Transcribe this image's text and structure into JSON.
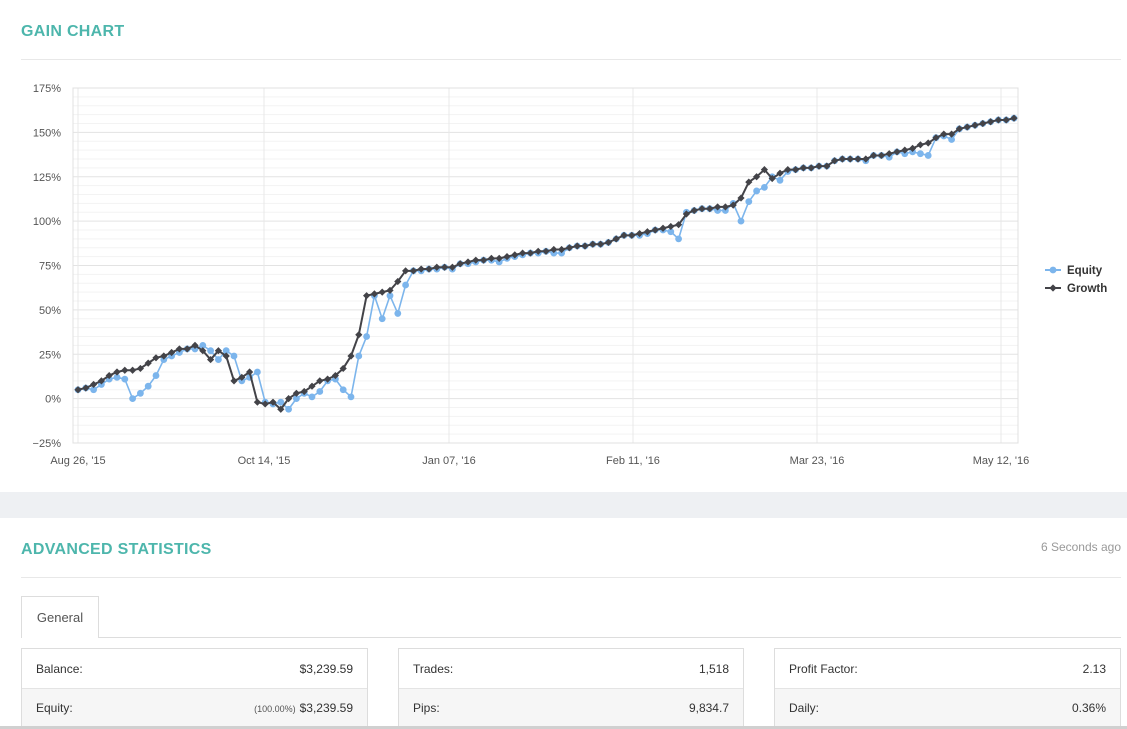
{
  "gain_chart": {
    "title": "GAIN CHART"
  },
  "chart_data": {
    "type": "line",
    "y_ticks": [
      "175%",
      "150%",
      "125%",
      "100%",
      "75%",
      "50%",
      "25%",
      "0%",
      "−25%"
    ],
    "x_ticks": [
      "Aug 26, '15",
      "Oct 14, '15",
      "Jan 07, '16",
      "Feb 11, '16",
      "Mar 23, '16",
      "May 12, '16"
    ],
    "ylim": [
      -25,
      175
    ],
    "grid": true,
    "legend_position": "right",
    "series": [
      {
        "name": "Equity",
        "color": "#7cb5ec",
        "values": [
          5,
          6,
          5,
          8,
          11,
          12,
          11,
          0,
          3,
          7,
          13,
          22,
          24,
          26,
          28,
          28,
          30,
          27,
          22,
          27,
          24,
          10,
          12,
          15,
          -2,
          -3,
          -2,
          -6,
          0,
          3,
          1,
          4,
          10,
          11,
          5,
          1,
          24,
          35,
          58,
          45,
          58,
          48,
          64,
          72,
          72,
          73,
          73,
          74,
          73,
          76,
          76,
          77,
          78,
          78,
          77,
          79,
          80,
          81,
          82,
          82,
          83,
          82,
          82,
          85,
          86,
          86,
          87,
          87,
          88,
          90,
          92,
          92,
          92,
          93,
          95,
          95,
          94,
          90,
          105,
          106,
          107,
          107,
          106,
          106,
          110,
          100,
          111,
          117,
          119,
          125,
          123,
          128,
          129,
          130,
          130,
          131,
          131,
          134,
          135,
          135,
          135,
          134,
          137,
          137,
          136,
          139,
          138,
          139,
          138,
          137,
          147,
          148,
          146,
          152,
          153,
          154,
          155,
          156,
          157,
          157,
          158
        ]
      },
      {
        "name": "Growth",
        "color": "#434348",
        "values": [
          5,
          6,
          8,
          10,
          13,
          15,
          16,
          16,
          17,
          20,
          23,
          24,
          26,
          28,
          28,
          30,
          27,
          22,
          27,
          24,
          10,
          12,
          15,
          -2,
          -3,
          -2,
          -6,
          0,
          3,
          4,
          7,
          10,
          11,
          13,
          17,
          24,
          36,
          58,
          59,
          60,
          61,
          66,
          72,
          72,
          73,
          73,
          74,
          74,
          74,
          76,
          77,
          78,
          78,
          79,
          79,
          80,
          81,
          82,
          82,
          83,
          83,
          84,
          84,
          85,
          86,
          86,
          87,
          87,
          88,
          90,
          92,
          92,
          93,
          94,
          95,
          96,
          97,
          98,
          104,
          106,
          107,
          107,
          108,
          108,
          109,
          113,
          122,
          125,
          129,
          124,
          127,
          129,
          129,
          130,
          130,
          131,
          131,
          134,
          135,
          135,
          135,
          135,
          137,
          137,
          138,
          139,
          140,
          141,
          143,
          144,
          147,
          149,
          149,
          152,
          153,
          154,
          155,
          156,
          157,
          157,
          158
        ]
      }
    ]
  },
  "advanced_statistics": {
    "title": "ADVANCED STATISTICS",
    "updated": "6 Seconds ago",
    "tab_general": "General",
    "col1": {
      "balance_label": "Balance:",
      "balance_value": "$3,239.59",
      "equity_label": "Equity:",
      "equity_pct": "(100.00%)",
      "equity_value": "$3,239.59"
    },
    "col2": {
      "trades_label": "Trades:",
      "trades_value": "1,518",
      "pips_label": "Pips:",
      "pips_value": "9,834.7"
    },
    "col3": {
      "pf_label": "Profit Factor:",
      "pf_value": "2.13",
      "daily_label": "Daily:",
      "daily_value": "0.36%"
    }
  }
}
